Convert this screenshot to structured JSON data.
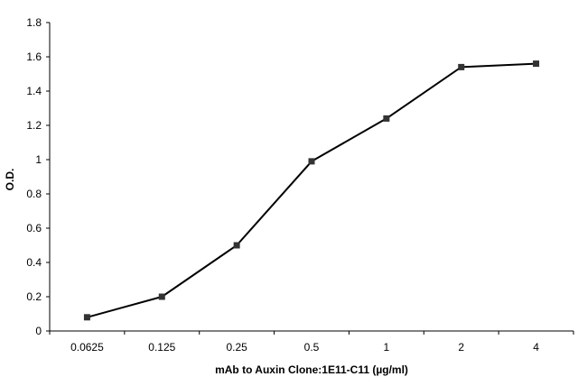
{
  "chart_data": {
    "type": "line",
    "title": "",
    "xlabel": "mAb to Auxin Clone:1E11-C11 (µg/ml)",
    "ylabel": "O.D.",
    "categories": [
      "0.0625",
      "0.125",
      "0.25",
      "0.5",
      "1",
      "2",
      "4"
    ],
    "series": [
      {
        "values": [
          0.08,
          0.2,
          0.5,
          0.99,
          1.24,
          1.54,
          1.56
        ]
      }
    ],
    "ylim": [
      0,
      1.8
    ],
    "yticks": [
      "0",
      "0.2",
      "0.4",
      "0.6",
      "0.8",
      "1",
      "1.2",
      "1.4",
      "1.6",
      "1.8"
    ],
    "grid": false,
    "legend": "none",
    "colors": {
      "line": "#000000",
      "marker": "#333333",
      "axis": "#000000"
    }
  }
}
